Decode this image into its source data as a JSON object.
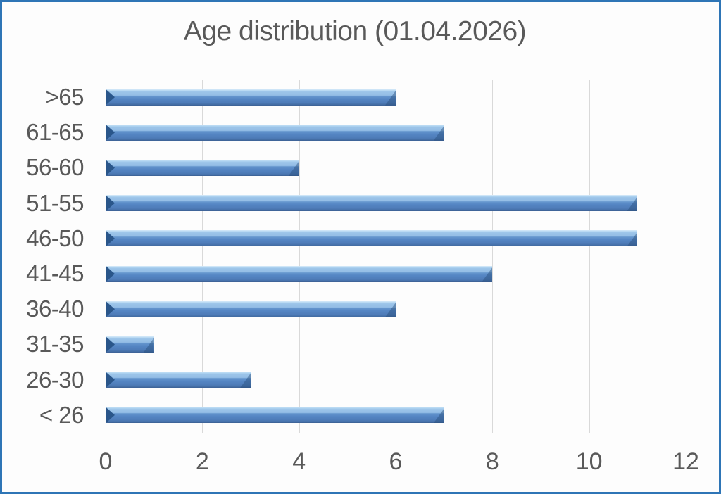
{
  "window": {
    "border_color": "#2E75B6",
    "background": "#FDFDFD",
    "text_color": "#595959",
    "gridline_color": "#D9D9D9"
  },
  "chart_data": {
    "type": "bar",
    "orientation": "horizontal",
    "title": "Age distribution (01.04.2026)",
    "categories": [
      ">65",
      "61-65",
      "56-60",
      "51-55",
      "46-50",
      "41-45",
      "36-40",
      "31-35",
      "26-30",
      "< 26"
    ],
    "values": [
      6,
      7,
      4,
      11,
      11,
      8,
      6,
      1,
      3,
      7
    ],
    "xlabel": "",
    "ylabel": "",
    "xlim": [
      0,
      12
    ],
    "xticks": [
      0,
      2,
      4,
      6,
      8,
      10,
      12
    ],
    "grid": true,
    "legend": false,
    "bar_color_light": "#9CC4E9",
    "bar_color_dark": "#5182BE",
    "bar_bevel_color": "#2A568A"
  }
}
